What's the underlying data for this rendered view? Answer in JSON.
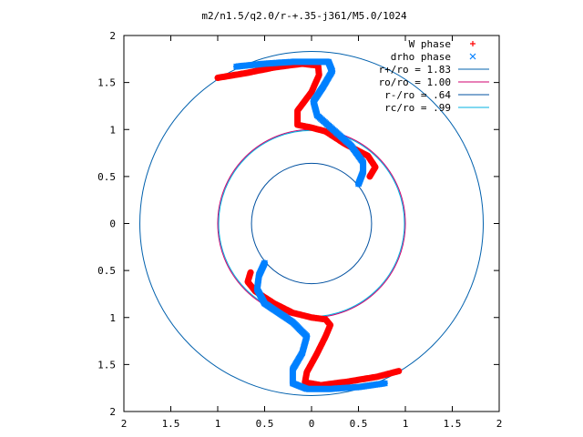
{
  "chart_data": {
    "type": "scatter",
    "title": "m2/n1.5/q2.0/r-+.35-j361/M5.0/1024",
    "xlim": [
      -2,
      2
    ],
    "ylim": [
      -2,
      2
    ],
    "x_tick_labels": [
      "2",
      "1.5",
      "1",
      "0.5",
      "0",
      "0.5",
      "1",
      "1.5",
      "2"
    ],
    "y_tick_labels": [
      "2",
      "1.5",
      "1",
      "0.5",
      "0",
      "0.5",
      "1",
      "1.5",
      "2"
    ],
    "x_tick_values": [
      -2,
      -1.5,
      -1,
      -0.5,
      0,
      0.5,
      1,
      1.5,
      2
    ],
    "y_tick_values": [
      2,
      1.5,
      1,
      0.5,
      0,
      -0.5,
      -1,
      -1.5,
      -2
    ],
    "legend_position": "top-right",
    "grid": false,
    "series": [
      {
        "name": "W phase",
        "marker": "+",
        "color": "#ff0000",
        "arm1": [
          [
            -1.0,
            1.55
          ],
          [
            -0.7,
            1.6
          ],
          [
            -0.4,
            1.66
          ],
          [
            -0.1,
            1.7
          ],
          [
            0.07,
            1.68
          ],
          [
            0.08,
            1.58
          ],
          [
            0.0,
            1.4
          ],
          [
            -0.15,
            1.2
          ],
          [
            -0.15,
            1.05
          ],
          [
            0.0,
            1.02
          ],
          [
            0.15,
            0.98
          ],
          [
            0.35,
            0.85
          ],
          [
            0.6,
            0.72
          ],
          [
            0.68,
            0.6
          ],
          [
            0.62,
            0.5
          ]
        ],
        "arm2": [
          [
            0.93,
            -1.57
          ],
          [
            0.7,
            -1.63
          ],
          [
            0.4,
            -1.68
          ],
          [
            0.1,
            -1.72
          ],
          [
            -0.07,
            -1.69
          ],
          [
            -0.05,
            -1.58
          ],
          [
            0.05,
            -1.4
          ],
          [
            0.15,
            -1.2
          ],
          [
            0.2,
            -1.08
          ],
          [
            0.15,
            -1.02
          ],
          [
            0.0,
            -1.0
          ],
          [
            -0.2,
            -0.95
          ],
          [
            -0.4,
            -0.85
          ],
          [
            -0.6,
            -0.72
          ],
          [
            -0.68,
            -0.62
          ],
          [
            -0.65,
            -0.52
          ]
        ]
      },
      {
        "name": "drho phase",
        "marker": "x",
        "color": "#0080ff",
        "arm1": [
          [
            -0.8,
            1.67
          ],
          [
            -0.5,
            1.7
          ],
          [
            -0.2,
            1.72
          ],
          [
            0.05,
            1.72
          ],
          [
            0.18,
            1.72
          ],
          [
            0.22,
            1.62
          ],
          [
            0.12,
            1.45
          ],
          [
            0.02,
            1.3
          ],
          [
            0.06,
            1.15
          ],
          [
            0.25,
            0.98
          ],
          [
            0.42,
            0.83
          ],
          [
            0.55,
            0.65
          ],
          [
            0.55,
            0.55
          ],
          [
            0.5,
            0.42
          ]
        ],
        "arm2": [
          [
            0.78,
            -1.7
          ],
          [
            0.5,
            -1.74
          ],
          [
            0.2,
            -1.76
          ],
          [
            -0.05,
            -1.76
          ],
          [
            -0.2,
            -1.7
          ],
          [
            -0.2,
            -1.55
          ],
          [
            -0.1,
            -1.38
          ],
          [
            -0.05,
            -1.2
          ],
          [
            -0.2,
            -1.05
          ],
          [
            -0.35,
            -0.95
          ],
          [
            -0.5,
            -0.85
          ],
          [
            -0.58,
            -0.7
          ],
          [
            -0.56,
            -0.55
          ],
          [
            -0.5,
            -0.42
          ]
        ]
      }
    ],
    "circles": [
      {
        "name": "r+/ro = 1.83",
        "radius": 1.83,
        "color": "#0060ad"
      },
      {
        "name": "ro/ro = 1.00",
        "radius": 1.0,
        "color": "#d0006f"
      },
      {
        "name": "r-/ro = .64",
        "radius": 0.64,
        "color": "#0050a0"
      },
      {
        "name": "rc/ro = .99",
        "radius": 0.99,
        "color": "#00b0e0"
      }
    ]
  }
}
